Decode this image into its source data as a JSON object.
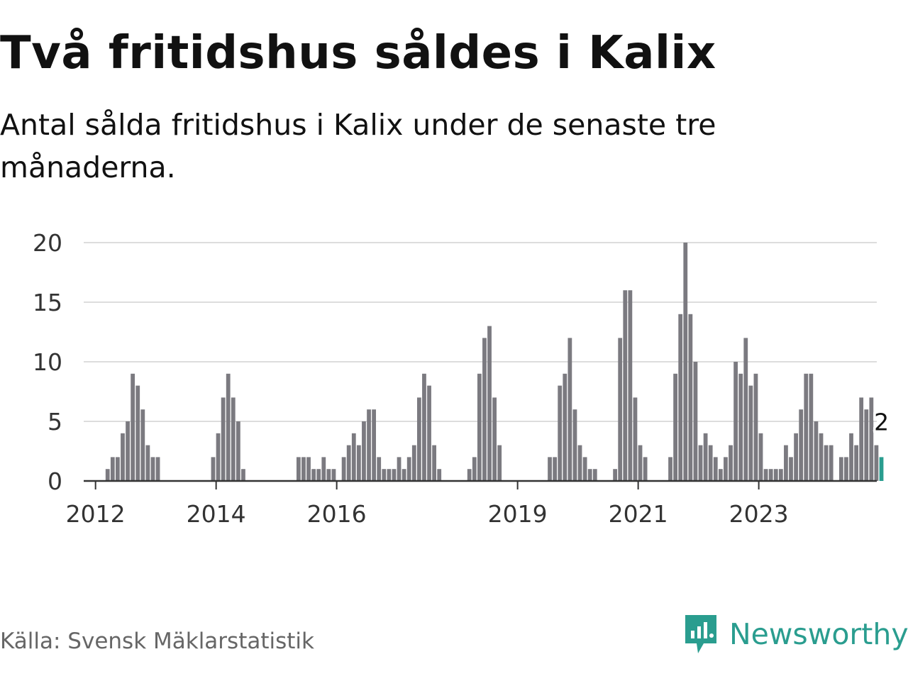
{
  "title": "Två fritidshus såldes i Kalix",
  "subtitle": "Antal sålda fritidshus i Kalix under de senaste tre månaderna.",
  "source": "Källa: Svensk Mäklarstatistik",
  "brand": {
    "name": "Newsworthy",
    "icon": "newsworthy-logo-icon",
    "color": "#2a9d8f"
  },
  "colors": {
    "bar": "#7b7a80",
    "highlight": "#2a9d8f",
    "grid": "#dddddd",
    "axis": "#333333"
  },
  "chart_data": {
    "type": "bar",
    "x_start": "2011-11",
    "x_step": "month",
    "ylim": [
      0,
      20
    ],
    "yticks": [
      0,
      5,
      10,
      15,
      20
    ],
    "xticks": [
      "2012",
      "2014",
      "2016",
      "2019",
      "2021",
      "2023"
    ],
    "grid": true,
    "values": [
      0,
      0,
      0,
      0,
      1,
      2,
      2,
      4,
      5,
      9,
      8,
      6,
      3,
      2,
      2,
      0,
      0,
      0,
      0,
      0,
      0,
      0,
      0,
      0,
      0,
      2,
      4,
      7,
      9,
      7,
      5,
      1,
      0,
      0,
      0,
      0,
      0,
      0,
      0,
      0,
      0,
      0,
      2,
      2,
      2,
      1,
      1,
      2,
      1,
      1,
      0,
      2,
      3,
      4,
      3,
      5,
      6,
      6,
      2,
      1,
      1,
      1,
      2,
      1,
      2,
      3,
      7,
      9,
      8,
      3,
      1,
      0,
      0,
      0,
      0,
      0,
      1,
      2,
      9,
      12,
      13,
      7,
      3,
      0,
      0,
      0,
      0,
      0,
      0,
      0,
      0,
      0,
      2,
      2,
      8,
      9,
      12,
      6,
      3,
      2,
      1,
      1,
      0,
      0,
      0,
      1,
      12,
      16,
      16,
      7,
      3,
      2,
      0,
      0,
      0,
      0,
      2,
      9,
      14,
      20,
      14,
      10,
      3,
      4,
      3,
      2,
      1,
      2,
      3,
      10,
      9,
      12,
      8,
      9,
      4,
      1,
      1,
      1,
      1,
      3,
      2,
      4,
      6,
      9,
      9,
      5,
      4,
      3,
      3,
      0,
      2,
      2,
      4,
      3,
      7,
      6,
      7,
      3,
      2
    ],
    "highlight_label": "2"
  }
}
